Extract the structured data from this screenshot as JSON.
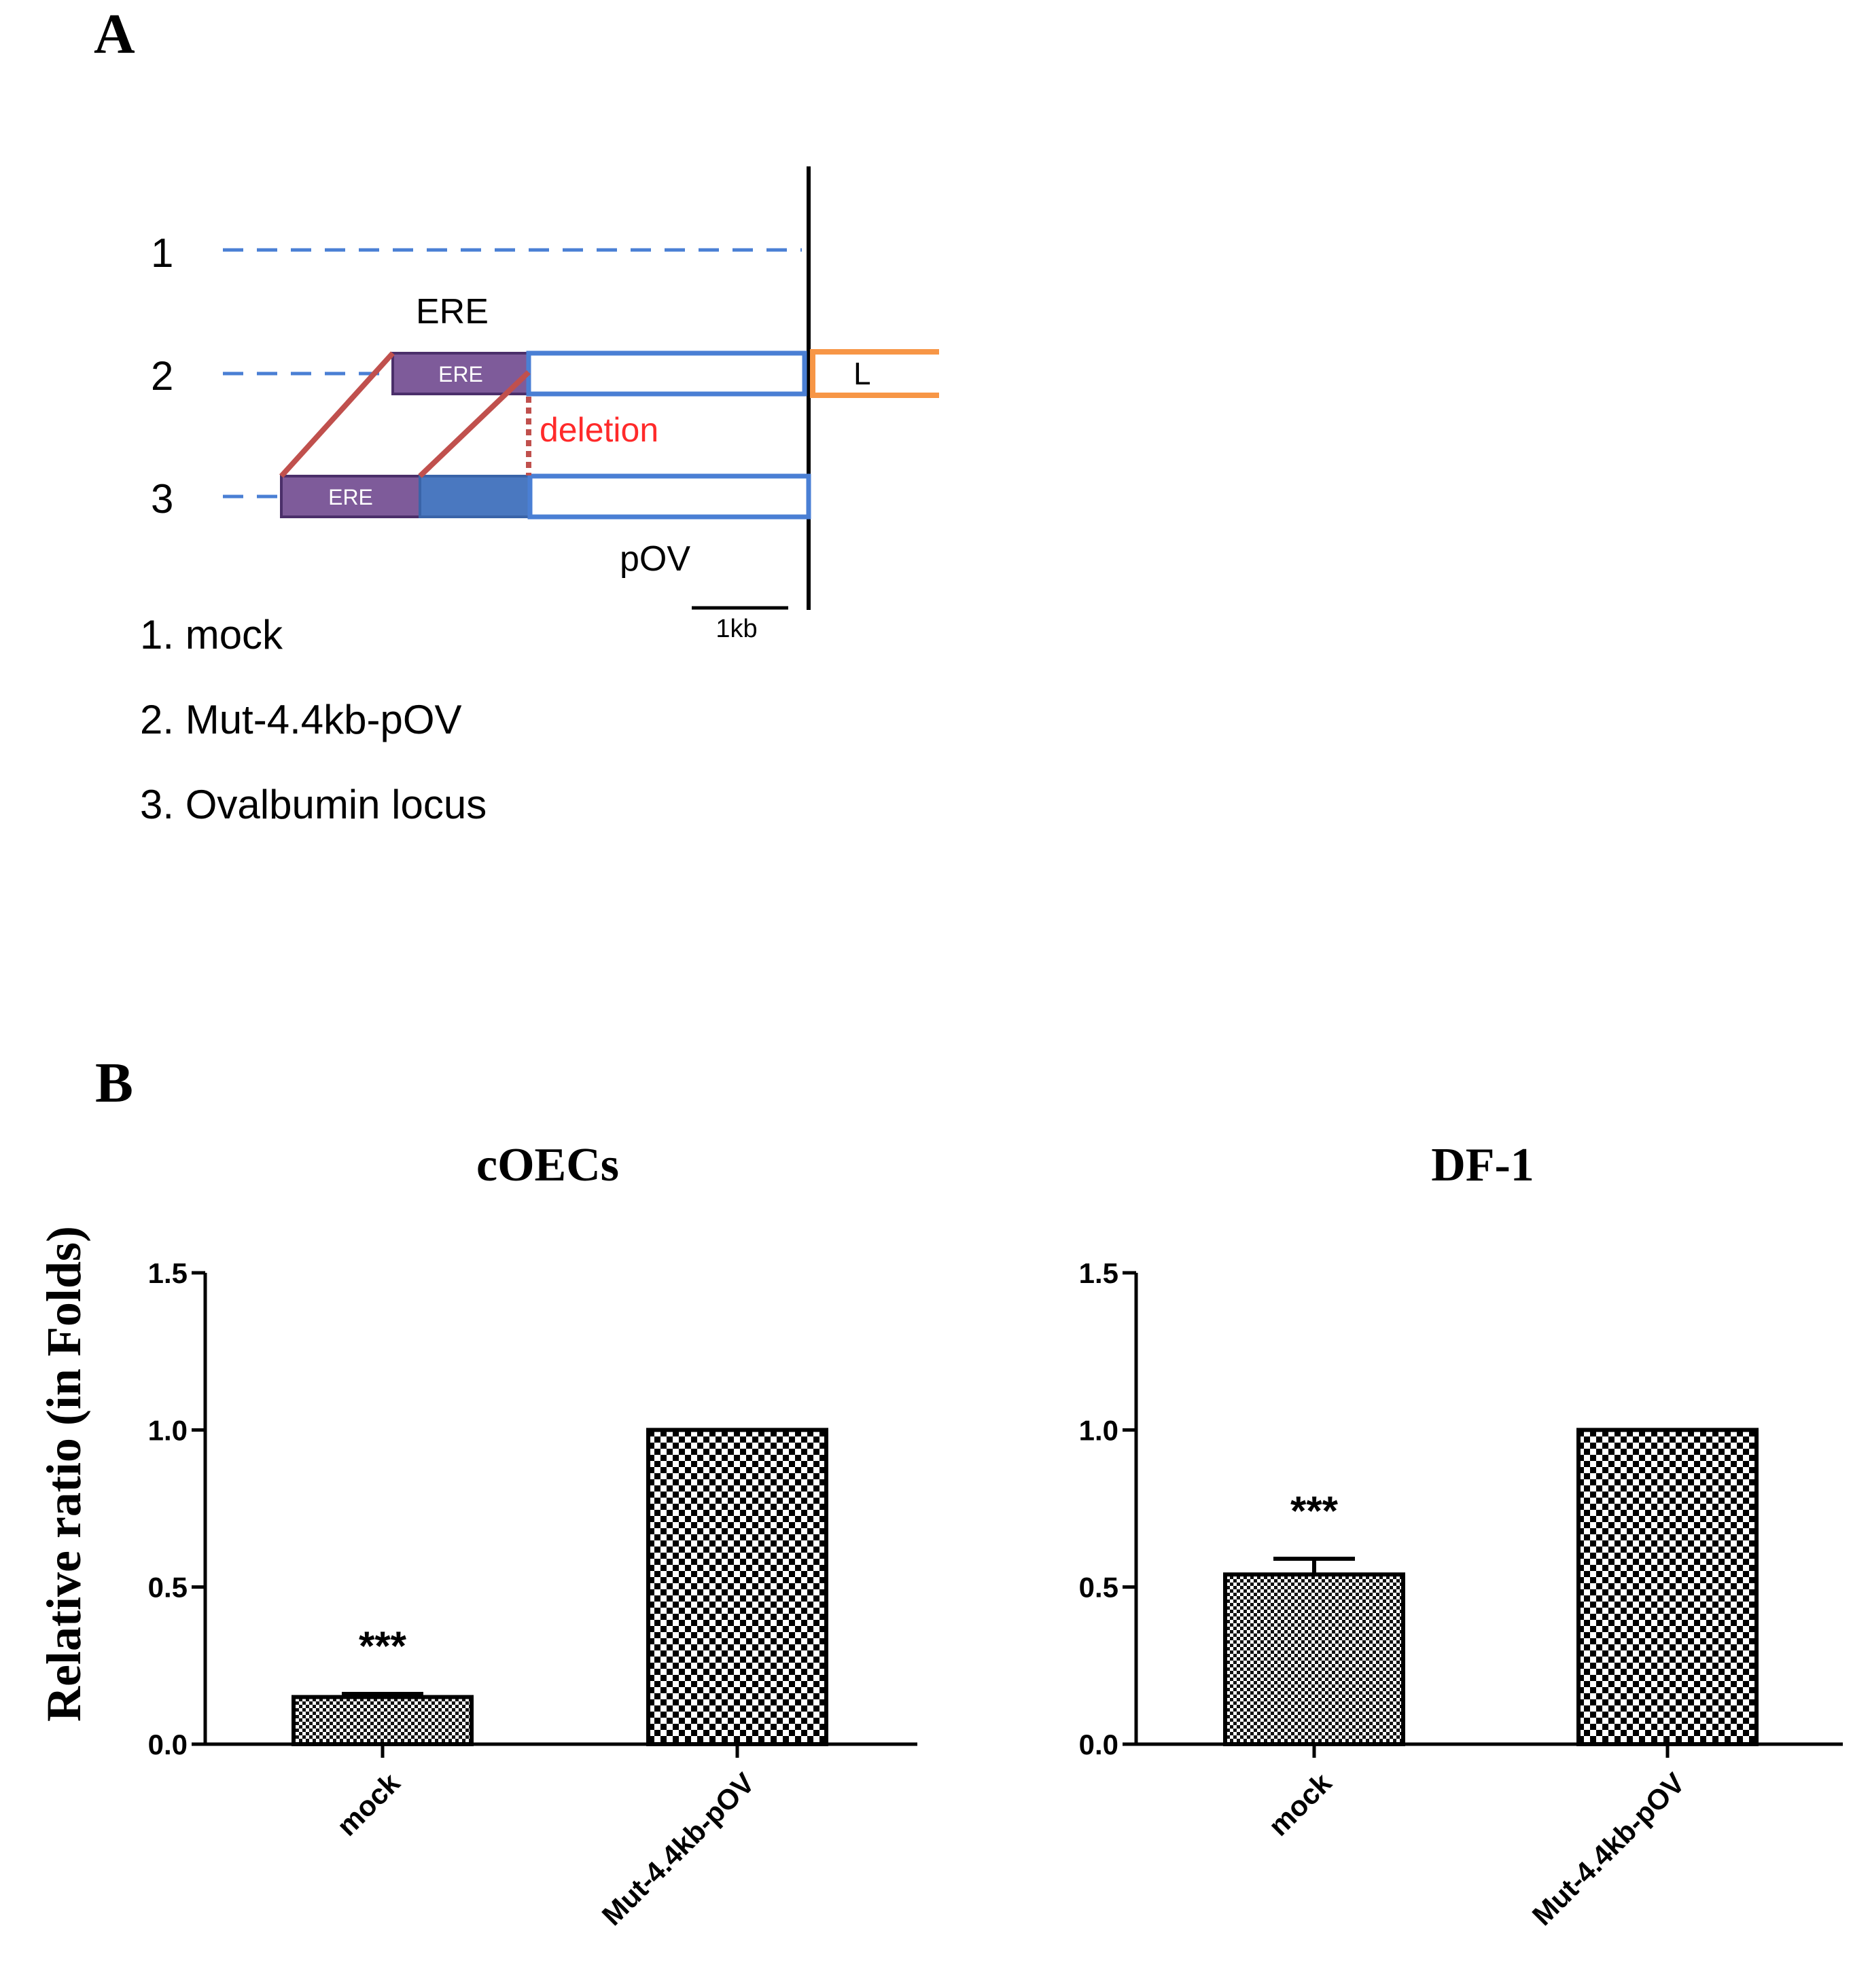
{
  "panel_a": {
    "letter": "A",
    "row_numbers": [
      "1",
      "2",
      "3"
    ],
    "ere_label": "ERE",
    "ere_box_label": "ERE",
    "l_label": "L",
    "deletion_label": "deletion",
    "pov_label": "pOV",
    "scale_label": "1kb",
    "legend": [
      "1. mock",
      "2. Mut-4.4kb-pOV",
      "3. Ovalbumin locus"
    ],
    "colors": {
      "dashed": "#4a7fd4",
      "box_blue": "#4a7fd4",
      "box_blue_fill": "#4a78c0",
      "ere_purple": "#7e5b9a",
      "connector": "#c0504d",
      "orange": "#f79646",
      "deletion": "#ff2a2a"
    }
  },
  "panel_b": {
    "letter": "B",
    "ylabel": "Relative ratio (in Folds)"
  },
  "chart_data": [
    {
      "type": "bar",
      "title": "cOECs",
      "categories": [
        "mock",
        "Mut-4.4kb-pOV"
      ],
      "values": [
        0.15,
        1.0
      ],
      "errors": [
        0.01,
        0.0
      ],
      "annotations": [
        "***",
        ""
      ],
      "ylim": [
        0,
        1.5
      ],
      "yticks": [
        "0.0",
        "0.5",
        "1.0",
        "1.5"
      ],
      "ylabel": "Relative ratio (in Folds)",
      "xlabel": ""
    },
    {
      "type": "bar",
      "title": "DF-1",
      "categories": [
        "mock",
        "Mut-4.4kb-pOV"
      ],
      "values": [
        0.54,
        1.0
      ],
      "errors": [
        0.05,
        0.0
      ],
      "annotations": [
        "***",
        ""
      ],
      "ylim": [
        0,
        1.5
      ],
      "yticks": [
        "0.0",
        "0.5",
        "1.0",
        "1.5"
      ],
      "ylabel": "",
      "xlabel": ""
    }
  ]
}
